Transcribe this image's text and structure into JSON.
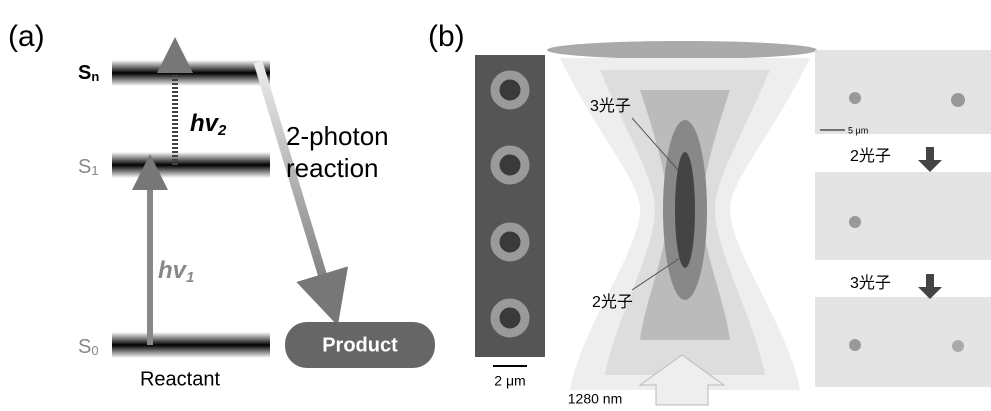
{
  "panel_a": {
    "label": "(a)",
    "levels": [
      {
        "symbol": "S",
        "sub": "n"
      },
      {
        "symbol": "S",
        "sub": "1"
      },
      {
        "symbol": "S",
        "sub": "0"
      }
    ],
    "photons": [
      {
        "symbol": "hv",
        "sub": "2"
      },
      {
        "symbol": "hv",
        "sub": "1"
      }
    ],
    "reaction": [
      "2-photon",
      "reaction"
    ],
    "product": "Product",
    "reactant": "Reactant"
  },
  "panel_b": {
    "label": "(b)",
    "scale_left": "2 μm",
    "focus_labels": [
      "3光子",
      "2光子"
    ],
    "wavelength": "1280 nm",
    "scale_right": "5 μm",
    "step_labels": [
      "2光子",
      "3光子"
    ]
  }
}
